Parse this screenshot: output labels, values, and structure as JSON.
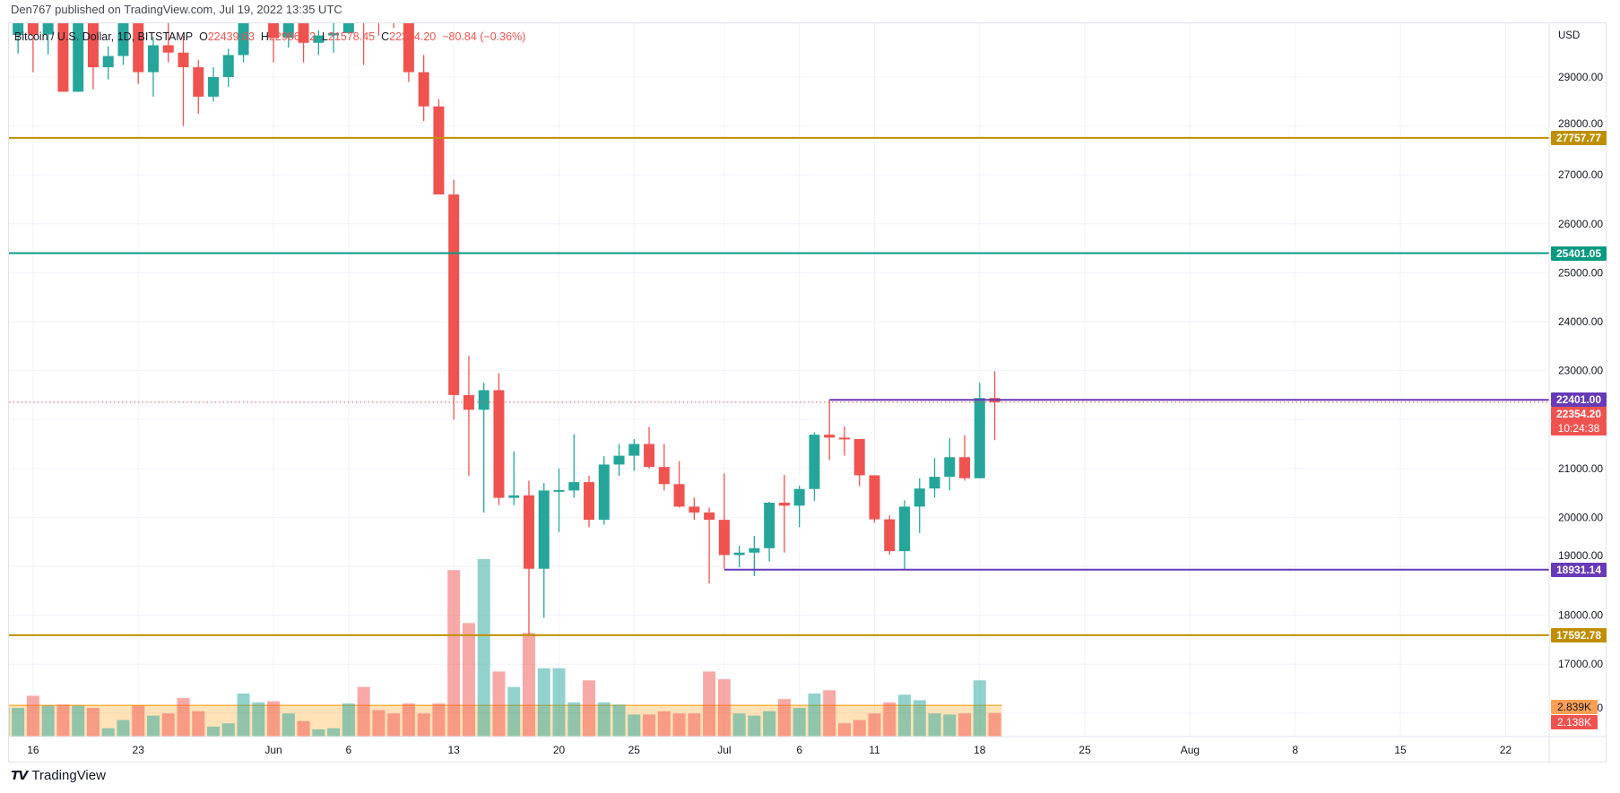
{
  "header": {
    "published": "Den767 published on TradingView.com, Jul 19, 2022 13:35 UTC"
  },
  "legend": {
    "symbol": "Bitcoin / U.S. Dollar, 1D, BITSTAMP",
    "open_label": "O",
    "open": "22439.63",
    "high_label": "H",
    "high": "22986.82",
    "low_label": "L",
    "low": "21578.45",
    "close_label": "C",
    "close": "22354.20",
    "change": "−80.84 (−0.36%)"
  },
  "footer": {
    "brand": "TradingView",
    "logo_icon": "tradingview-logo-icon"
  },
  "colors": {
    "up": "#26a69a",
    "down": "#ef5350",
    "gold": "#bf8f00",
    "teal": "#089981",
    "purple": "#673ab7",
    "volume_ma": "#ff9800"
  },
  "chart_data": {
    "type": "candlestick",
    "currency": "USD",
    "y_ticks": [
      "29000.00",
      "28000.00",
      "27000.00",
      "26000.00",
      "25000.00",
      "24000.00",
      "23000.00",
      "22000.00",
      "21000.00",
      "20000.00",
      "19000.00",
      "18000.00",
      "17000.00",
      "16000.00"
    ],
    "x_ticks": [
      {
        "label": "16",
        "date": "2022-05-16"
      },
      {
        "label": "23",
        "date": "2022-05-23"
      },
      {
        "label": "Jun",
        "date": "2022-06-01"
      },
      {
        "label": "6",
        "date": "2022-06-06"
      },
      {
        "label": "13",
        "date": "2022-06-13"
      },
      {
        "label": "20",
        "date": "2022-06-20"
      },
      {
        "label": "25",
        "date": "2022-06-25"
      },
      {
        "label": "Jul",
        "date": "2022-07-01"
      },
      {
        "label": "6",
        "date": "2022-07-06"
      },
      {
        "label": "11",
        "date": "2022-07-11"
      },
      {
        "label": "18",
        "date": "2022-07-18"
      },
      {
        "label": "25",
        "date": "2022-07-25"
      },
      {
        "label": "Aug",
        "date": "2022-08-01"
      },
      {
        "label": "8",
        "date": "2022-08-08"
      },
      {
        "label": "15",
        "date": "2022-08-15"
      },
      {
        "label": "22",
        "date": "2022-08-22"
      }
    ],
    "columns": [
      "date",
      "open",
      "high",
      "low",
      "close",
      "volume_k"
    ],
    "candles": [
      [
        "2022-05-14",
        29280,
        30300,
        28650,
        29860,
        2.6
      ],
      [
        "2022-05-15",
        29860,
        31400,
        29480,
        31300,
        2.6
      ],
      [
        "2022-05-16",
        31300,
        31300,
        29100,
        29870,
        3.7
      ],
      [
        "2022-05-17",
        29870,
        30770,
        29460,
        30420,
        2.8
      ],
      [
        "2022-05-18",
        30420,
        30680,
        28700,
        28700,
        2.9
      ],
      [
        "2022-05-19",
        28700,
        30530,
        28700,
        30300,
        2.8
      ],
      [
        "2022-05-20",
        30300,
        30750,
        28750,
        29200,
        2.6
      ],
      [
        "2022-05-21",
        29200,
        29630,
        28950,
        29430,
        0.75
      ],
      [
        "2022-05-22",
        29430,
        30450,
        29250,
        30280,
        1.5
      ],
      [
        "2022-05-23",
        30280,
        30650,
        28860,
        29100,
        2.8
      ],
      [
        "2022-05-24",
        29100,
        29820,
        28600,
        29650,
        1.9
      ],
      [
        "2022-05-25",
        29650,
        30200,
        29300,
        29500,
        2.1
      ],
      [
        "2022-05-26",
        29500,
        29840,
        28000,
        29200,
        3.5
      ],
      [
        "2022-05-27",
        29200,
        29350,
        28250,
        28600,
        2.3
      ],
      [
        "2022-05-28",
        28600,
        29200,
        28500,
        29000,
        0.9
      ],
      [
        "2022-05-29",
        29000,
        29580,
        28800,
        29450,
        1.2
      ],
      [
        "2022-05-30",
        29450,
        32200,
        29300,
        31750,
        3.9
      ],
      [
        "2022-05-31",
        31750,
        32350,
        31200,
        31800,
        3.1
      ],
      [
        "2022-06-01",
        31800,
        31950,
        29300,
        29800,
        3.2
      ],
      [
        "2022-06-02",
        29800,
        30650,
        29600,
        30450,
        2.1
      ],
      [
        "2022-06-03",
        30450,
        30650,
        29300,
        29700,
        1.4
      ],
      [
        "2022-06-04",
        29700,
        29950,
        29450,
        29850,
        0.65
      ],
      [
        "2022-06-05",
        29850,
        30150,
        29500,
        29900,
        0.75
      ],
      [
        "2022-06-06",
        29900,
        31750,
        29880,
        31350,
        3.0
      ],
      [
        "2022-06-07",
        31350,
        31550,
        29250,
        31100,
        4.5
      ],
      [
        "2022-06-08",
        31100,
        31300,
        29850,
        30200,
        2.4
      ],
      [
        "2022-06-09",
        30200,
        30700,
        30000,
        30100,
        2.1
      ],
      [
        "2022-06-10",
        30100,
        30300,
        28900,
        29100,
        3.0
      ],
      [
        "2022-06-11",
        29100,
        29450,
        28100,
        28400,
        2.1
      ],
      [
        "2022-06-12",
        28400,
        28550,
        26600,
        26600,
        3.0
      ],
      [
        "2022-06-13",
        26600,
        26900,
        22000,
        22500,
        15.1
      ],
      [
        "2022-06-14",
        22500,
        23300,
        20850,
        22200,
        10.3
      ],
      [
        "2022-06-15",
        22200,
        22750,
        20100,
        22600,
        16.1
      ],
      [
        "2022-06-16",
        22600,
        22950,
        20250,
        20400,
        5.9
      ],
      [
        "2022-06-17",
        20400,
        21350,
        20250,
        20450,
        4.5
      ],
      [
        "2022-06-18",
        20450,
        20750,
        17600,
        18950,
        9.4
      ],
      [
        "2022-06-19",
        18950,
        20700,
        17950,
        20550,
        6.2
      ],
      [
        "2022-06-20",
        20550,
        21000,
        19700,
        20560,
        6.2
      ],
      [
        "2022-06-21",
        20550,
        21700,
        20400,
        20720,
        3.1
      ],
      [
        "2022-06-22",
        20720,
        20850,
        19800,
        19950,
        5.1
      ],
      [
        "2022-06-23",
        19950,
        21250,
        19850,
        21080,
        3.1
      ],
      [
        "2022-06-24",
        21080,
        21500,
        20850,
        21260,
        2.9
      ],
      [
        "2022-06-25",
        21260,
        21600,
        20950,
        21500,
        2.0
      ],
      [
        "2022-06-26",
        21500,
        21850,
        21000,
        21030,
        2.0
      ],
      [
        "2022-06-27",
        21030,
        21500,
        20550,
        20680,
        2.3
      ],
      [
        "2022-06-28",
        20680,
        21150,
        20200,
        20220,
        2.1
      ],
      [
        "2022-06-29",
        20220,
        20400,
        19950,
        20100,
        2.1
      ],
      [
        "2022-06-30",
        20100,
        20200,
        18650,
        19950,
        5.9
      ],
      [
        "2022-07-01",
        19950,
        20900,
        18950,
        19230,
        5.2
      ],
      [
        "2022-07-02",
        19230,
        19420,
        18980,
        19280,
        2.1
      ],
      [
        "2022-07-03",
        19280,
        19620,
        18800,
        19370,
        1.9
      ],
      [
        "2022-07-04",
        19370,
        20320,
        19100,
        20300,
        2.3
      ],
      [
        "2022-07-05",
        20300,
        20870,
        19280,
        20240,
        3.4
      ],
      [
        "2022-07-06",
        20240,
        20650,
        19800,
        20580,
        2.6
      ],
      [
        "2022-07-07",
        20580,
        21740,
        20340,
        21690,
        3.9
      ],
      [
        "2022-07-08",
        21690,
        22400,
        21170,
        21630,
        4.2
      ],
      [
        "2022-07-09",
        21630,
        21860,
        21260,
        21600,
        1.2
      ],
      [
        "2022-07-10",
        21600,
        21600,
        20640,
        20860,
        1.5
      ],
      [
        "2022-07-11",
        20860,
        20860,
        19890,
        19960,
        2.1
      ],
      [
        "2022-07-12",
        19960,
        20040,
        19240,
        19310,
        3.1
      ],
      [
        "2022-07-13",
        19310,
        20350,
        18930,
        20220,
        3.8
      ],
      [
        "2022-07-14",
        20220,
        20800,
        19680,
        20590,
        3.3
      ],
      [
        "2022-07-15",
        20590,
        21210,
        20400,
        20830,
        2.1
      ],
      [
        "2022-07-16",
        20830,
        21620,
        20550,
        21230,
        2.0
      ],
      [
        "2022-07-17",
        21230,
        21680,
        20750,
        20800,
        2.1
      ],
      [
        "2022-07-18",
        20800,
        22750,
        20800,
        22439.63,
        5.1
      ],
      [
        "2022-07-19",
        22439.63,
        22986.82,
        21578.45,
        22354.2,
        2.138
      ]
    ],
    "volume_ma": 2.839,
    "horizontal_lines": [
      {
        "price": 27757.77,
        "label": "27757.77",
        "color": "gold"
      },
      {
        "price": 25401.05,
        "label": "25401.05",
        "color": "teal"
      },
      {
        "price": 22401.0,
        "label": "22401.00",
        "color": "purple",
        "from": "2022-07-08"
      },
      {
        "price": 18931.14,
        "label": "18931.14",
        "color": "purple",
        "from": "2022-07-01"
      },
      {
        "price": 17592.78,
        "label": "17592.78",
        "color": "gold"
      }
    ],
    "last_price": {
      "price": 22354.2,
      "label": "22354.20",
      "countdown": "10:24:38"
    },
    "volume_labels": {
      "ma": "2.839K",
      "last": "2.138K"
    }
  }
}
